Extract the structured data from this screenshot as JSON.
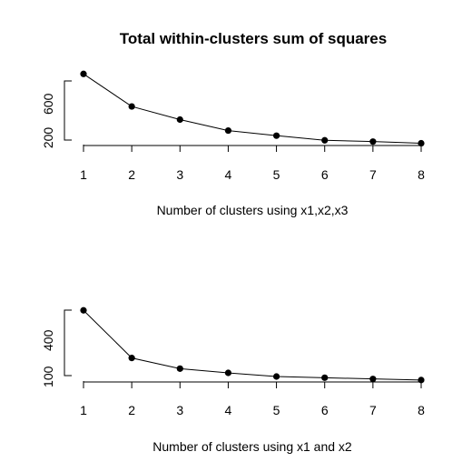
{
  "chart_data": [
    {
      "type": "line",
      "title": "Total within-clusters sum of squares",
      "xlabel": "Number of clusters using x1,x2,x3",
      "ylabel": "",
      "x": [
        1,
        2,
        3,
        4,
        5,
        6,
        7,
        8
      ],
      "series": [
        {
          "values": [
            955,
            570,
            415,
            285,
            225,
            170,
            155,
            135
          ]
        }
      ],
      "xticks": [
        1,
        2,
        3,
        4,
        5,
        6,
        7,
        8
      ],
      "yticks": [
        200,
        600
      ],
      "ylim": [
        130,
        958
      ],
      "grid": false
    },
    {
      "type": "line",
      "title": "",
      "xlabel": "Number of clusters using x1 and x2",
      "ylabel": "",
      "x": [
        1,
        2,
        3,
        4,
        5,
        6,
        7,
        8
      ],
      "series": [
        {
          "values": [
            648,
            255,
            167,
            132,
            102,
            92,
            82,
            73
          ]
        }
      ],
      "xticks": [
        1,
        2,
        3,
        4,
        5,
        6,
        7,
        8
      ],
      "yticks": [
        100,
        400
      ],
      "ylim": [
        72,
        650
      ],
      "grid": false
    }
  ]
}
